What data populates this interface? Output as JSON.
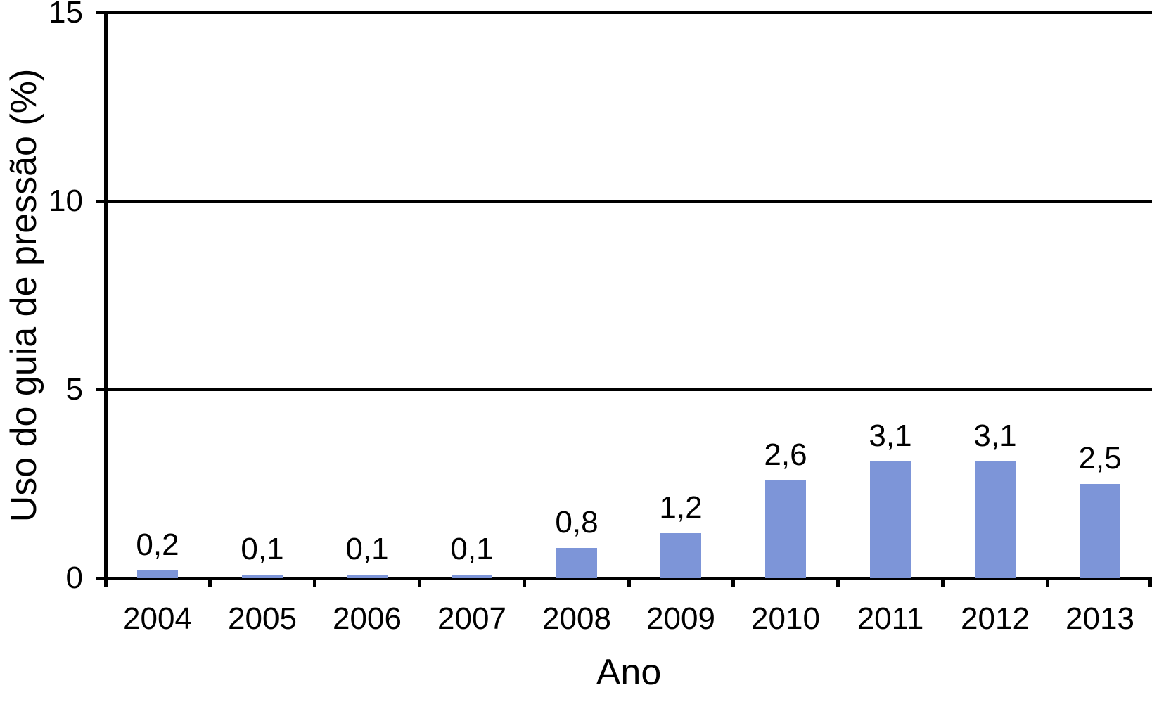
{
  "chart_data": {
    "type": "bar",
    "title": "",
    "xlabel": "Ano",
    "ylabel": "Uso do guia de pressão (%)",
    "categories": [
      "2004",
      "2005",
      "2006",
      "2007",
      "2008",
      "2009",
      "2010",
      "2011",
      "2012",
      "2013"
    ],
    "values": [
      0.2,
      0.1,
      0.1,
      0.1,
      0.8,
      1.2,
      2.6,
      3.1,
      3.1,
      2.5
    ],
    "value_labels": [
      "0,2",
      "0,1",
      "0,1",
      "0,1",
      "0,8",
      "1,2",
      "2,6",
      "3,1",
      "3,1",
      "2,5"
    ],
    "ylim": [
      0,
      15
    ],
    "yticks": [
      0,
      5,
      10,
      15
    ],
    "ytick_labels": [
      "0",
      "5",
      "10",
      "15"
    ],
    "grid": "horizontal",
    "legend": "none",
    "bar_color": "#7D95D8",
    "axis_color": "#000000",
    "background_color": "#FFFFFF"
  }
}
